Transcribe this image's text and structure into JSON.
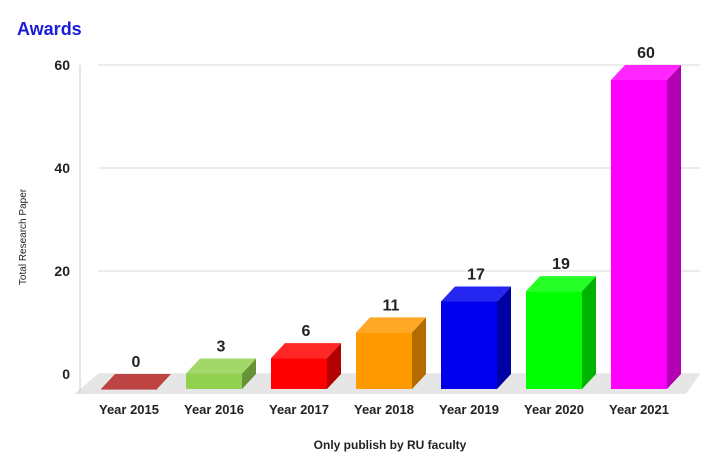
{
  "chart_data": {
    "type": "bar",
    "title": "Awards",
    "title_color": "#1a1adb",
    "xlabel": "Only publish by RU faculty",
    "ylabel": "Total Research Paper",
    "categories": [
      "Year 2015",
      "Year 2016",
      "Year 2017",
      "Year 2018",
      "Year 2019",
      "Year 2020",
      "Year 2021"
    ],
    "values": [
      0,
      3,
      6,
      11,
      17,
      19,
      60
    ],
    "data_labels": [
      "0",
      "3",
      "6",
      "11",
      "17",
      "19",
      "60"
    ],
    "colors": [
      "#b22222",
      "#92d050",
      "#ff0000",
      "#ff9900",
      "#0000ee",
      "#00ff00",
      "#ff00ff"
    ],
    "ylim": [
      0,
      60
    ],
    "yticks": [
      0,
      20,
      40,
      60
    ],
    "ytick_labels": [
      "0",
      "20",
      "40",
      "60"
    ],
    "grid": true,
    "legend": false,
    "style": "3d"
  }
}
